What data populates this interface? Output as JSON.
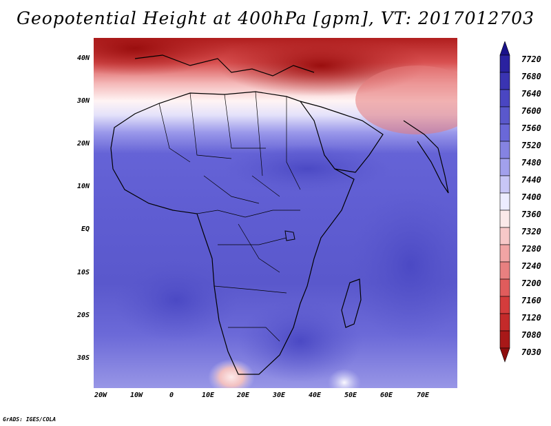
{
  "title": "Geopotential Height at 400hPa [gpm], VT: 2017012703",
  "credit": "GrADS: IGES/COLA",
  "map": {
    "region": "Africa",
    "variable": "Geopotential Height",
    "level": "400hPa",
    "units": "gpm",
    "valid_time": "2017012703",
    "lat_labels": [
      "40N",
      "30N",
      "20N",
      "10N",
      "EQ",
      "10S",
      "20S",
      "30S"
    ],
    "lon_labels": [
      "20W",
      "10W",
      "0",
      "10E",
      "20E",
      "30E",
      "40E",
      "50E",
      "60E",
      "70E"
    ],
    "lat_range": [
      -36.5,
      45
    ],
    "lon_range": [
      -22.5,
      78.5
    ]
  },
  "colorbar": {
    "labels": [
      "7720",
      "7680",
      "7640",
      "7600",
      "7560",
      "7520",
      "7480",
      "7440",
      "7400",
      "7360",
      "7320",
      "7280",
      "7240",
      "7200",
      "7160",
      "7120",
      "7080",
      "7030"
    ],
    "colors": [
      "#1a128a",
      "#2a22a0",
      "#3a34b2",
      "#4a46c2",
      "#5a58cc",
      "#6a68d8",
      "#8583e2",
      "#a2a0ec",
      "#c8c6f6",
      "#ececff",
      "#fbe9e9",
      "#f7c8c8",
      "#f1a4a4",
      "#e88080",
      "#e05c5c",
      "#d43c3c",
      "#c42a2a",
      "#a81818",
      "#8e0e0e"
    ]
  }
}
